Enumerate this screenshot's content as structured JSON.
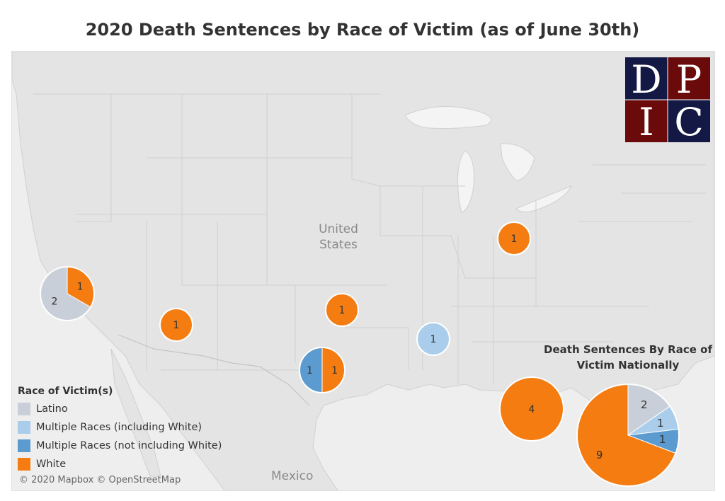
{
  "title": "2020 Death Sentences by Race of Victim (as of June 30th)",
  "map": {
    "labels": {
      "country_us": "United States",
      "country_mexico": "Mexico"
    },
    "attribution": "© 2020 Mapbox © OpenStreetMap"
  },
  "logo": {
    "letters": [
      "D",
      "P",
      "I",
      "C"
    ],
    "colors": [
      "#6b0a0a",
      "#141845"
    ]
  },
  "colors": {
    "Latino": "#c9cfd9",
    "Multiple Races (including White)": "#a9cdea",
    "Multiple Races (not including White)": "#5b9bd0",
    "White": "#f47c11"
  },
  "legend": {
    "title": "Race of Victim(s)",
    "items": [
      "Latino",
      "Multiple Races (including White)",
      "Multiple Races (not including White)",
      "White"
    ]
  },
  "national": {
    "title": "Death Sentences By Race of Victim Nationally"
  },
  "chart_data": [
    {
      "type": "pie",
      "title": "Death Sentences By Race of Victim Nationally",
      "slices": [
        {
          "category": "Latino",
          "value": 2
        },
        {
          "category": "Multiple Races (including White)",
          "value": 1
        },
        {
          "category": "Multiple Races (not including White)",
          "value": 1
        },
        {
          "category": "White",
          "value": 9
        }
      ]
    },
    {
      "type": "pie",
      "map_markers": [
        {
          "location": "California",
          "slices": [
            {
              "category": "White",
              "value": 1
            },
            {
              "category": "Latino",
              "value": 2
            }
          ]
        },
        {
          "location": "Arizona",
          "slices": [
            {
              "category": "White",
              "value": 1
            }
          ]
        },
        {
          "location": "Oklahoma",
          "slices": [
            {
              "category": "White",
              "value": 1
            }
          ]
        },
        {
          "location": "Texas",
          "slices": [
            {
              "category": "White",
              "value": 1
            },
            {
              "category": "Multiple Races (not including White)",
              "value": 1
            }
          ]
        },
        {
          "location": "Mississippi",
          "slices": [
            {
              "category": "Multiple Races (including White)",
              "value": 1
            }
          ]
        },
        {
          "location": "Ohio",
          "slices": [
            {
              "category": "White",
              "value": 1
            }
          ]
        },
        {
          "location": "Florida",
          "slices": [
            {
              "category": "White",
              "value": 4
            }
          ]
        }
      ]
    }
  ]
}
